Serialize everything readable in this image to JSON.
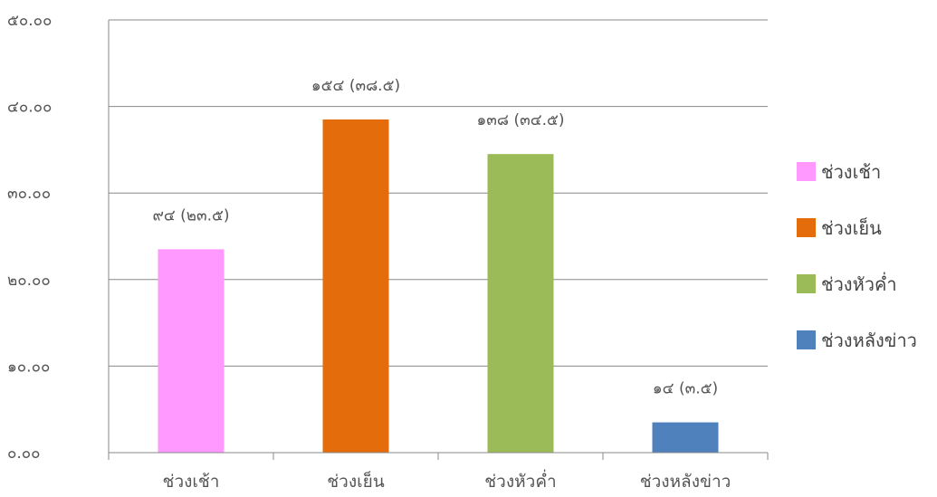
{
  "chart_data": {
    "type": "bar",
    "categories": [
      "ช่วงเช้า",
      "ช่วงเย็น",
      "ช่วงหัวค่ำ",
      "ช่วงหลังข่าว"
    ],
    "values": [
      23.5,
      38.5,
      34.5,
      3.5
    ],
    "data_labels": [
      "๙๔ (๒๓.๕)",
      "๑๕๔ (๓๘.๕)",
      "๑๓๘ (๓๔.๕)",
      "๑๔ (๓.๕)"
    ],
    "colors": [
      "#ff99ff",
      "#e46c0a",
      "#9bbb59",
      "#4f81bd"
    ],
    "y_ticks": [
      {
        "value": 0,
        "label": "๐.๐๐"
      },
      {
        "value": 10,
        "label": "๑๐.๐๐"
      },
      {
        "value": 20,
        "label": "๒๐.๐๐"
      },
      {
        "value": 30,
        "label": "๓๐.๐๐"
      },
      {
        "value": 40,
        "label": "๔๐.๐๐"
      },
      {
        "value": 50,
        "label": "๕๐.๐๐"
      }
    ],
    "ylim": [
      0,
      50
    ],
    "grid": true,
    "legend": {
      "position": "right",
      "entries": [
        "ช่วงเช้า",
        "ช่วงเย็น",
        "ช่วงหัวค่ำ",
        "ช่วงหลังข่าว"
      ]
    },
    "title": "",
    "xlabel": "",
    "ylabel": ""
  }
}
